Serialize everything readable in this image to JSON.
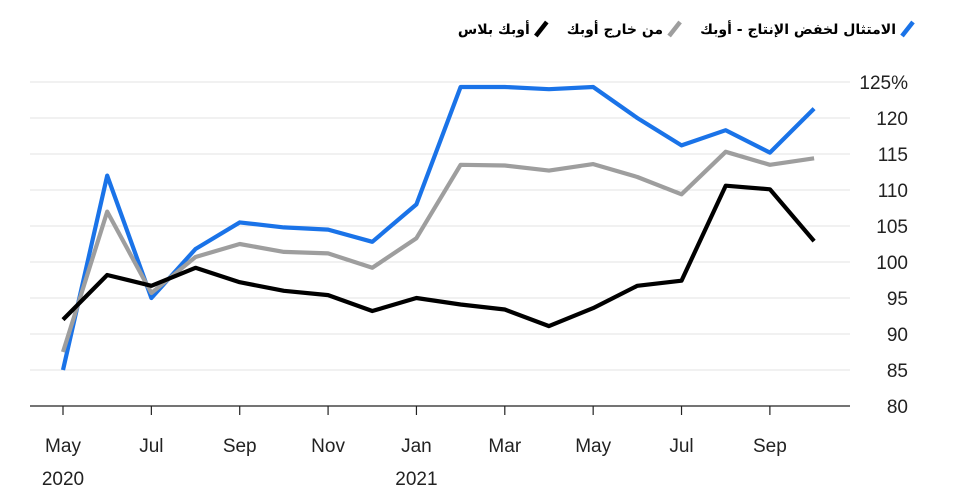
{
  "chart_data": {
    "type": "line",
    "title": "",
    "xlabel": "",
    "ylabel": "",
    "y_unit_suffix": "%",
    "ylim": [
      80,
      126
    ],
    "yticks": [
      80,
      85,
      90,
      95,
      100,
      105,
      110,
      115,
      120,
      125
    ],
    "x": [
      "2020-05",
      "2020-06",
      "2020-07",
      "2020-08",
      "2020-09",
      "2020-10",
      "2020-11",
      "2020-12",
      "2021-01",
      "2021-02",
      "2021-03",
      "2021-04",
      "2021-05",
      "2021-06",
      "2021-07",
      "2021-08",
      "2021-09",
      "2021-10"
    ],
    "x_tick_labels": [
      {
        "x": "2020-05",
        "label": "May",
        "year": "2020"
      },
      {
        "x": "2020-07",
        "label": "Jul",
        "year": ""
      },
      {
        "x": "2020-09",
        "label": "Sep",
        "year": ""
      },
      {
        "x": "2020-11",
        "label": "Nov",
        "year": ""
      },
      {
        "x": "2021-01",
        "label": "Jan",
        "year": "2021"
      },
      {
        "x": "2021-03",
        "label": "Mar",
        "year": ""
      },
      {
        "x": "2021-05",
        "label": "May",
        "year": ""
      },
      {
        "x": "2021-07",
        "label": "Jul",
        "year": ""
      },
      {
        "x": "2021-09",
        "label": "Sep",
        "year": ""
      }
    ],
    "grid": true,
    "legend_position": "top-right",
    "series": [
      {
        "name": "الامتثال لخفض الإنتاج - أوبك",
        "color": "#1a73e8",
        "values": [
          85,
          112,
          95,
          101.8,
          105.5,
          104.8,
          104.5,
          102.8,
          108,
          124.3,
          124.3,
          124,
          124.3,
          120,
          116.2,
          118.3,
          115.2,
          121.3
        ]
      },
      {
        "name": "من خارج أوبك",
        "color": "#9e9e9e",
        "values": [
          87.5,
          107,
          95.7,
          100.7,
          102.5,
          101.4,
          101.2,
          99.2,
          103.3,
          113.5,
          113.4,
          112.7,
          113.6,
          111.8,
          109.4,
          115.3,
          113.5,
          114.4
        ]
      },
      {
        "name": "أوبك بلاس",
        "color": "#000000",
        "values": [
          92,
          98.2,
          96.7,
          99.2,
          97.2,
          96,
          95.4,
          93.2,
          95,
          94.1,
          93.4,
          91.1,
          93.6,
          96.7,
          97.4,
          110.6,
          110.1,
          102.9
        ]
      }
    ]
  }
}
